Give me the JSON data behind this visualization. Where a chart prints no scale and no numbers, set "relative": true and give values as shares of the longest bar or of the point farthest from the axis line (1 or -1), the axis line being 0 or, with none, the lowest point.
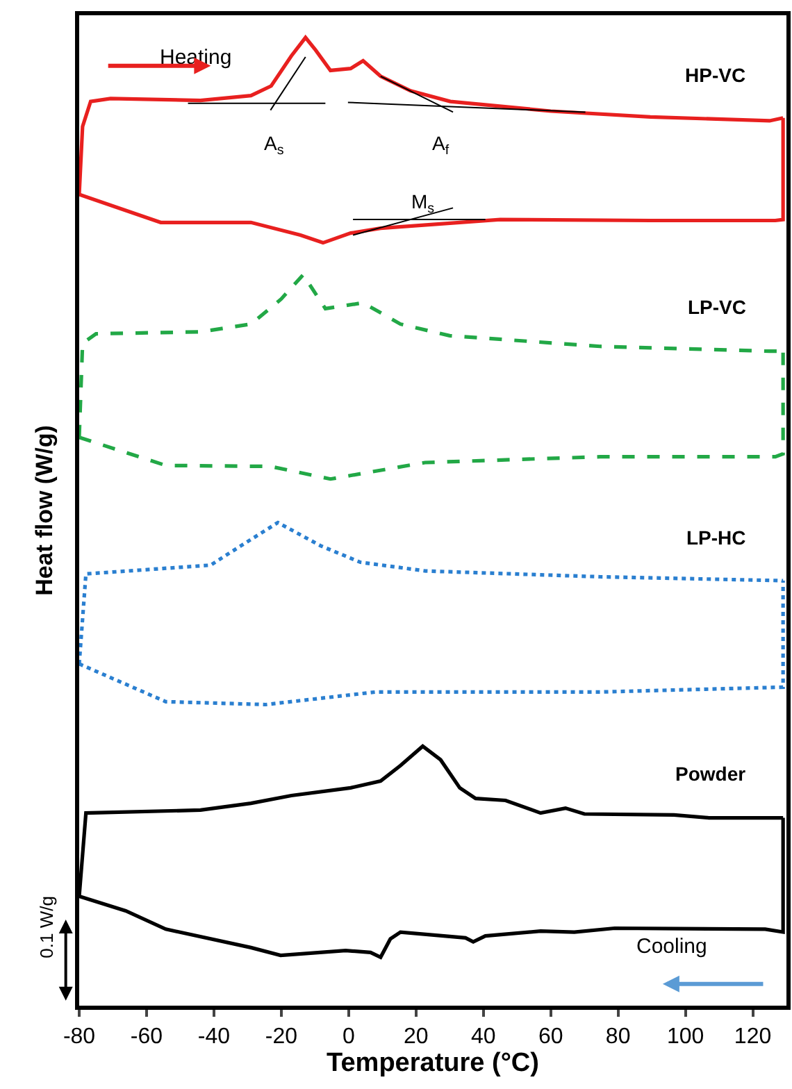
{
  "chart_data": {
    "type": "line",
    "relative": true,
    "xlabel": "Temperature (°C)",
    "ylabel": "Heat flow (W/g)",
    "xlim": [
      -80,
      130
    ],
    "xticks": [
      -80,
      -60,
      -40,
      -20,
      0,
      20,
      40,
      60,
      80,
      100,
      120
    ],
    "legend": false,
    "marker": "none",
    "series": [
      {
        "name": "HP-VC",
        "color": "#e8201f",
        "line_style": "solid",
        "x": [
          -80,
          -79,
          -76.6,
          -70.7,
          -44,
          -29,
          -23,
          -17,
          -12.8,
          -9.8,
          -5.4,
          0.6,
          4.3,
          9.5,
          18.4,
          30.2,
          60,
          89.6,
          125,
          129
        ],
        "values": [
          0.838,
          0.908,
          0.934,
          0.937,
          0.935,
          0.94,
          0.95,
          0.981,
          1.0,
          0.987,
          0.966,
          0.968,
          0.976,
          0.96,
          0.945,
          0.934,
          0.924,
          0.918,
          0.914,
          0.917
        ]
      },
      {
        "color": "#e8201f",
        "line_style": "solid",
        "x": [
          -80,
          -55.8,
          -29,
          -14.3,
          -7.6,
          0.6,
          9.5,
          45,
          89.6,
          126.7,
          129,
          129
        ],
        "values": [
          0.838,
          0.809,
          0.809,
          0.796,
          0.788,
          0.798,
          0.803,
          0.812,
          0.811,
          0.811,
          0.812,
          0.917
        ]
      },
      {
        "name": "LP-VC",
        "color": "#22a846",
        "line_style": "dashed",
        "x": [
          -80,
          -79,
          -75,
          -44,
          -29,
          -20,
          -13.5,
          -6.9,
          4.3,
          15.4,
          30,
          74.7,
          125,
          129
        ],
        "values": [
          0.587,
          0.684,
          0.694,
          0.696,
          0.704,
          0.73,
          0.755,
          0.72,
          0.726,
          0.704,
          0.692,
          0.681,
          0.676,
          0.676
        ]
      },
      {
        "color": "#22a846",
        "line_style": "dashed",
        "x": [
          -80,
          -54.3,
          -23.2,
          -5.4,
          22.7,
          74.7,
          126.7,
          129,
          129
        ],
        "values": [
          0.587,
          0.558,
          0.557,
          0.544,
          0.561,
          0.567,
          0.567,
          0.57,
          0.676
        ]
      },
      {
        "name": "LP-HC",
        "color": "#2a7fd0",
        "line_style": "dotted",
        "x": [
          -80,
          -78,
          -41,
          -32,
          -21,
          -8.3,
          3.5,
          22.8,
          74.7,
          129
        ],
        "values": [
          0.353,
          0.446,
          0.455,
          0.475,
          0.499,
          0.475,
          0.458,
          0.449,
          0.443,
          0.439
        ]
      },
      {
        "color": "#2a7fd0",
        "line_style": "dotted",
        "x": [
          -80,
          -54.3,
          -24.6,
          8,
          74.7,
          129,
          129
        ],
        "values": [
          0.353,
          0.314,
          0.311,
          0.324,
          0.324,
          0.329,
          0.439
        ]
      },
      {
        "name": "Powder",
        "color": "#000000",
        "line_style": "solid",
        "x": [
          -80,
          -78,
          -44,
          -29,
          -17,
          0.6,
          9.5,
          15.4,
          22,
          27.3,
          33,
          37.7,
          46.6,
          57,
          64.4,
          70,
          96.6,
          107,
          129
        ],
        "values": [
          0.113,
          0.199,
          0.202,
          0.209,
          0.217,
          0.225,
          0.232,
          0.248,
          0.268,
          0.254,
          0.225,
          0.214,
          0.212,
          0.199,
          0.204,
          0.198,
          0.197,
          0.194,
          0.194
        ]
      },
      {
        "color": "#000000",
        "line_style": "solid",
        "x": [
          -80,
          -66.2,
          -54.3,
          -29,
          -20.2,
          -0.9,
          6.5,
          9.5,
          12.4,
          15.4,
          34.7,
          37,
          40.6,
          57,
          67,
          79,
          123.7,
          129,
          129
        ],
        "values": [
          0.113,
          0.098,
          0.079,
          0.06,
          0.052,
          0.057,
          0.055,
          0.05,
          0.069,
          0.076,
          0.07,
          0.066,
          0.072,
          0.077,
          0.076,
          0.08,
          0.079,
          0.076,
          0.194
        ]
      },
      {
        "color": "#000000",
        "line_style": "solid",
        "x": [
          -47.7,
          -6.9
        ],
        "values": [
          0.932,
          0.932
        ]
      },
      {
        "color": "#000000",
        "line_style": "solid",
        "x": [
          -23.2,
          -12.8
        ],
        "values": [
          0.925,
          0.98
        ]
      },
      {
        "color": "#000000",
        "line_style": "solid",
        "x": [
          -0.2,
          70.3
        ],
        "values": [
          0.933,
          0.923
        ]
      },
      {
        "color": "#000000",
        "line_style": "solid",
        "x": [
          9.5,
          31
        ],
        "values": [
          0.96,
          0.923
        ]
      },
      {
        "color": "#000000",
        "line_style": "solid",
        "x": [
          1.3,
          40.6
        ],
        "values": [
          0.812,
          0.812
        ]
      },
      {
        "color": "#000000",
        "line_style": "solid",
        "x": [
          1.3,
          31
        ],
        "values": [
          0.796,
          0.824
        ]
      }
    ],
    "annotations": [
      "Heating",
      "A$_{s}$",
      "A$_{f}$",
      "M$_{s}$",
      "Cooling",
      "0.1 W/g"
    ]
  }
}
